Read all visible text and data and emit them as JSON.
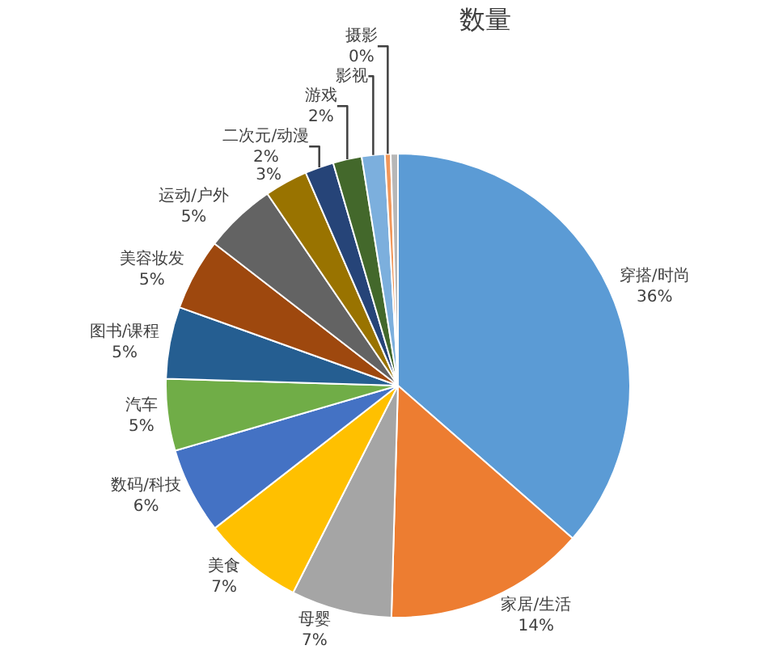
{
  "chart_data": {
    "type": "pie",
    "title": "数量",
    "categories": [
      "穿搭/时尚",
      "家居/生活",
      "母婴",
      "美食",
      "数码/科技",
      "汽车",
      "图书/课程",
      "美容妆发",
      "运动/户外",
      null,
      "二次元/动漫",
      "游戏",
      "影视",
      "摄影",
      null
    ],
    "values": [
      36.4,
      14,
      7,
      7,
      6,
      5,
      5,
      5,
      5,
      3,
      2,
      2,
      1.6,
      0.4,
      0.5
    ],
    "value_labels": [
      "36%",
      "14%",
      "7%",
      "7%",
      "6%",
      "5%",
      "5%",
      "5%",
      "5%",
      "3%",
      "2%",
      "2%",
      null,
      "0%",
      null
    ],
    "colors": [
      "#5b9bd5",
      "#ed7d31",
      "#a5a5a5",
      "#ffc000",
      "#4472c4",
      "#70ad47",
      "#255e91",
      "#9e480e",
      "#636363",
      "#997300",
      "#264478",
      "#43682b",
      "#7cafdd",
      "#f1975a",
      "#b7b7b7"
    ],
    "legend": false
  }
}
